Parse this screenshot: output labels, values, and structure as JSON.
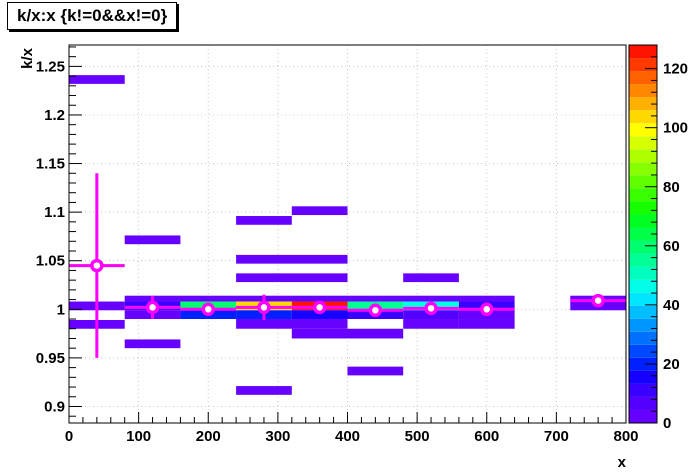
{
  "chart_data": {
    "type": "heatmap",
    "title": "k/x:x {k!=0&&x!=0}",
    "xlabel": "x",
    "ylabel": "k/x",
    "xlim": [
      0,
      800
    ],
    "ylim": [
      0.883,
      1.272
    ],
    "grid": true,
    "x_ticks": [
      0,
      100,
      200,
      300,
      400,
      500,
      600,
      700,
      800
    ],
    "y_ticks": [
      0.9,
      0.95,
      1,
      1.05,
      1.1,
      1.15,
      1.2,
      1.25
    ],
    "z_range": [
      0,
      128
    ],
    "z_ticks": [
      0,
      20,
      40,
      60,
      80,
      100,
      120
    ],
    "palette": [
      "#6600ff",
      "#5400ff",
      "#3a00ff",
      "#1600ff",
      "#0020ff",
      "#0048ff",
      "#0070ff",
      "#0096ff",
      "#00beff",
      "#00e6ff",
      "#00ffe6",
      "#00ffbe",
      "#00ff96",
      "#00ff70",
      "#00ff48",
      "#00ff20",
      "#16ff00",
      "#3aff00",
      "#60ff00",
      "#88ff00",
      "#b0ff00",
      "#d8ff00",
      "#ffff00",
      "#ffd800",
      "#ffb000",
      "#ff8800",
      "#ff6000",
      "#ff3a00",
      "#ff1400"
    ],
    "cells": [
      {
        "x": [
          0,
          80
        ],
        "y": [
          1.232,
          1.241
        ],
        "z": 1
      },
      {
        "x": [
          80,
          160
        ],
        "y": [
          1.067,
          1.076
        ],
        "z": 1
      },
      {
        "x": [
          240,
          320
        ],
        "y": [
          1.087,
          1.096
        ],
        "z": 1
      },
      {
        "x": [
          320,
          400
        ],
        "y": [
          1.097,
          1.106
        ],
        "z": 1
      },
      {
        "x": [
          240,
          400
        ],
        "y": [
          1.047,
          1.056
        ],
        "z": 1
      },
      {
        "x": [
          240,
          400
        ],
        "y": [
          1.028,
          1.037
        ],
        "z": 1
      },
      {
        "x": [
          480,
          560
        ],
        "y": [
          1.028,
          1.037
        ],
        "z": 1
      },
      {
        "x": [
          0,
          80
        ],
        "y": [
          0.999,
          1.008
        ],
        "z": 3
      },
      {
        "x": [
          0,
          80
        ],
        "y": [
          0.98,
          0.989
        ],
        "z": 3
      },
      {
        "x": [
          80,
          640
        ],
        "y": [
          1.008,
          1.014
        ],
        "z": 3
      },
      {
        "x": [
          80,
          160
        ],
        "y": [
          0.999,
          1.008
        ],
        "z": 10
      },
      {
        "x": [
          160,
          240
        ],
        "y": [
          0.999,
          1.008
        ],
        "z": 60
      },
      {
        "x": [
          240,
          320
        ],
        "y": [
          0.999,
          1.008
        ],
        "z": 105
      },
      {
        "x": [
          320,
          400
        ],
        "y": [
          0.999,
          1.008
        ],
        "z": 125
      },
      {
        "x": [
          400,
          480
        ],
        "y": [
          0.999,
          1.008
        ],
        "z": 55
      },
      {
        "x": [
          480,
          560
        ],
        "y": [
          0.999,
          1.008
        ],
        "z": 45
      },
      {
        "x": [
          560,
          640
        ],
        "y": [
          0.999,
          1.008
        ],
        "z": 12
      },
      {
        "x": [
          80,
          160
        ],
        "y": [
          0.99,
          0.999
        ],
        "z": 3
      },
      {
        "x": [
          160,
          240
        ],
        "y": [
          0.99,
          0.999
        ],
        "z": 18
      },
      {
        "x": [
          240,
          320
        ],
        "y": [
          0.99,
          0.999
        ],
        "z": 22
      },
      {
        "x": [
          320,
          400
        ],
        "y": [
          0.99,
          0.999
        ],
        "z": 16
      },
      {
        "x": [
          400,
          480
        ],
        "y": [
          0.99,
          0.999
        ],
        "z": 12
      },
      {
        "x": [
          480,
          560
        ],
        "y": [
          0.99,
          0.999
        ],
        "z": 8
      },
      {
        "x": [
          560,
          640
        ],
        "y": [
          0.99,
          0.999
        ],
        "z": 3
      },
      {
        "x": [
          240,
          400
        ],
        "y": [
          0.98,
          0.99
        ],
        "z": 1
      },
      {
        "x": [
          480,
          560
        ],
        "y": [
          0.98,
          0.99
        ],
        "z": 1
      },
      {
        "x": [
          560,
          640
        ],
        "y": [
          0.98,
          0.99
        ],
        "z": 1
      },
      {
        "x": [
          320,
          480
        ],
        "y": [
          0.97,
          0.98
        ],
        "z": 1
      },
      {
        "x": [
          80,
          160
        ],
        "y": [
          0.96,
          0.969
        ],
        "z": 1
      },
      {
        "x": [
          400,
          480
        ],
        "y": [
          0.932,
          0.941
        ],
        "z": 1
      },
      {
        "x": [
          240,
          320
        ],
        "y": [
          0.912,
          0.921
        ],
        "z": 1
      },
      {
        "x": [
          720,
          800
        ],
        "y": [
          0.999,
          1.014
        ],
        "z": 1
      }
    ],
    "profile": {
      "name": "profile",
      "color": "#ff00ff",
      "points": [
        {
          "x": 40,
          "y": 1.045,
          "xerr": 40,
          "yerr": 0.095
        },
        {
          "x": 120,
          "y": 1.002,
          "xerr": 40,
          "yerr": 0.012
        },
        {
          "x": 200,
          "y": 1.0,
          "xerr": 40,
          "yerr": 0.004
        },
        {
          "x": 280,
          "y": 1.002,
          "xerr": 40,
          "yerr": 0.013
        },
        {
          "x": 360,
          "y": 1.002,
          "xerr": 40,
          "yerr": 0.005
        },
        {
          "x": 440,
          "y": 0.999,
          "xerr": 40,
          "yerr": 0.005
        },
        {
          "x": 520,
          "y": 1.001,
          "xerr": 40,
          "yerr": 0.003
        },
        {
          "x": 600,
          "y": 1.0,
          "xerr": 40,
          "yerr": 0.002
        },
        {
          "x": 760,
          "y": 1.009,
          "xerr": 40,
          "yerr": 0.003
        }
      ]
    }
  }
}
